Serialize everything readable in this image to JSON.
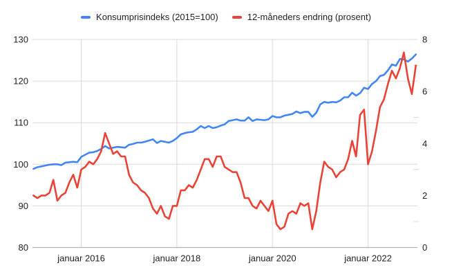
{
  "chart": {
    "background": "#ffffff",
    "text_color": "#202124",
    "gridline_color": "#d9d9d9",
    "baseline_color": "#b3b3b3",
    "series_line_width": 2.6
  },
  "chart_data": {
    "type": "line",
    "title": "",
    "x_frequency": "monthly",
    "x_start": "januar 2015",
    "x_end": "januar 2023",
    "x_point_count": 97,
    "x_axis_ticks": [
      {
        "month_index": 12,
        "label": "januar 2016"
      },
      {
        "month_index": 36,
        "label": "januar 2018"
      },
      {
        "month_index": 60,
        "label": "januar 2020"
      },
      {
        "month_index": 84,
        "label": "januar 2022"
      }
    ],
    "left_axis": {
      "min": 80,
      "max": 130,
      "tick_labels": [
        80,
        90,
        100,
        110,
        120,
        130
      ]
    },
    "right_axis": {
      "min": 0,
      "max": 8,
      "tick_labels": [
        0,
        2,
        4,
        6,
        8
      ],
      "minor_ticks": [
        1,
        3,
        5,
        7
      ]
    },
    "legend_position": "top",
    "grid": true,
    "series": [
      {
        "name": "Konsumprisindeks (2015=100)",
        "axis": "left",
        "color": "#4285f4",
        "values": [
          98.9,
          99.3,
          99.5,
          99.7,
          99.9,
          100.0,
          100.0,
          99.8,
          100.4,
          100.5,
          100.6,
          100.5,
          101.8,
          102.3,
          102.8,
          102.9,
          103.2,
          103.7,
          104.4,
          103.8,
          104.0,
          104.2,
          104.1,
          104.0,
          104.7,
          104.9,
          105.2,
          105.2,
          105.4,
          105.7,
          106.0,
          105.1,
          105.6,
          105.4,
          105.2,
          105.6,
          106.3,
          107.2,
          107.5,
          107.7,
          107.8,
          108.4,
          109.2,
          108.7,
          109.2,
          108.7,
          108.9,
          109.3,
          109.6,
          110.4,
          110.6,
          110.8,
          110.5,
          110.5,
          111.3,
          110.4,
          110.8,
          110.7,
          110.6,
          110.8,
          111.6,
          111.3,
          111.3,
          111.7,
          111.9,
          112.1,
          112.7,
          112.3,
          112.6,
          112.6,
          111.4,
          112.4,
          114.4,
          115.0,
          114.8,
          115.0,
          114.9,
          115.3,
          116.1,
          116.1,
          117.2,
          116.5,
          117.1,
          118.4,
          118.1,
          119.3,
          120.0,
          121.2,
          121.5,
          122.6,
          124.0,
          123.7,
          125.3,
          125.2,
          124.7,
          125.4,
          126.4
        ]
      },
      {
        "name": "12-måneders endring (prosent)",
        "axis": "right",
        "color": "#ea4335",
        "values": [
          2.0,
          1.9,
          2.0,
          2.0,
          2.1,
          2.6,
          1.8,
          2.0,
          2.1,
          2.5,
          2.8,
          2.3,
          3.0,
          3.1,
          3.3,
          3.2,
          3.4,
          3.7,
          4.4,
          4.0,
          3.6,
          3.7,
          3.5,
          3.5,
          2.8,
          2.5,
          2.4,
          2.2,
          2.1,
          1.9,
          1.5,
          1.3,
          1.6,
          1.2,
          1.1,
          1.6,
          1.6,
          2.2,
          2.2,
          2.4,
          2.3,
          2.6,
          3.0,
          3.4,
          3.4,
          3.1,
          3.5,
          3.5,
          3.1,
          3.0,
          2.9,
          2.9,
          2.5,
          1.9,
          1.9,
          1.6,
          1.5,
          1.8,
          1.6,
          1.4,
          1.8,
          0.9,
          0.7,
          0.8,
          1.3,
          1.4,
          1.3,
          1.7,
          1.6,
          1.7,
          0.7,
          1.4,
          2.5,
          3.3,
          3.1,
          3.0,
          2.7,
          2.9,
          3.0,
          3.4,
          4.1,
          3.5,
          5.1,
          5.3,
          3.2,
          3.7,
          4.5,
          5.4,
          5.7,
          6.3,
          6.8,
          6.5,
          6.9,
          7.5,
          6.5,
          5.9,
          7.0
        ]
      }
    ]
  }
}
